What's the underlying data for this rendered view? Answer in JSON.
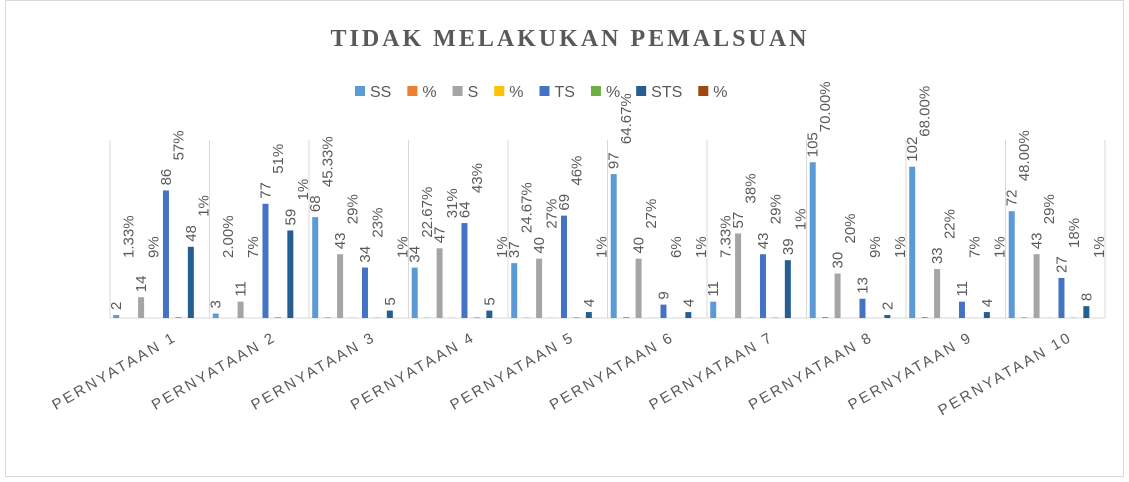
{
  "chart_data": {
    "type": "bar",
    "title": "TIDAK MELAKUKAN PEMALSUAN",
    "categories": [
      "PERNYATAAN 1",
      "PERNYATAAN 2",
      "PERNYATAAN 3",
      "PERNYATAAN 4",
      "PERNYATAAN 5",
      "PERNYATAAN 6",
      "PERNYATAAN 7",
      "PERNYATAAN 8",
      "PERNYATAAN 9",
      "PERNYATAAN 10"
    ],
    "ylim": [
      0,
      120
    ],
    "series": [
      {
        "name": "SS",
        "color": "#5b9bd5",
        "values": [
          2,
          3,
          68,
          34,
          37,
          97,
          11,
          105,
          102,
          72
        ]
      },
      {
        "name": "%",
        "color": "#ed7d31",
        "values": [
          0.0133,
          0.02,
          0.4533,
          0.2267,
          0.2467,
          0.6467,
          0.0733,
          0.7,
          0.68,
          0.48
        ],
        "value_labels": [
          "1.33%",
          "2.00%",
          "45.33%",
          "22.67%",
          "24.67%",
          "64.67%",
          "7.33%",
          "70.00%",
          "68.00%",
          "48.00%"
        ]
      },
      {
        "name": "S",
        "color": "#a5a5a5",
        "values": [
          14,
          11,
          43,
          47,
          40,
          40,
          57,
          30,
          33,
          43
        ]
      },
      {
        "name": "%",
        "color": "#ffc000",
        "values": [
          0.09,
          0.07,
          0.29,
          0.31,
          0.27,
          0.27,
          0.38,
          0.2,
          0.22,
          0.29
        ],
        "value_labels": [
          "9%",
          "7%",
          "29%",
          "31%",
          "27%",
          "27%",
          "38%",
          "20%",
          "22%",
          "29%"
        ]
      },
      {
        "name": "TS",
        "color": "#4472c4",
        "values": [
          86,
          77,
          34,
          64,
          69,
          9,
          43,
          13,
          11,
          27
        ]
      },
      {
        "name": "%",
        "color": "#70ad47",
        "values": [
          0.57,
          0.51,
          0.23,
          0.43,
          0.46,
          0.06,
          0.29,
          0.09,
          0.07,
          0.18
        ],
        "value_labels": [
          "57%",
          "51%",
          "23%",
          "43%",
          "46%",
          "6%",
          "29%",
          "9%",
          "7%",
          "18%"
        ]
      },
      {
        "name": "STS",
        "color": "#255e91",
        "values": [
          48,
          59,
          5,
          5,
          4,
          4,
          39,
          2,
          4,
          8
        ]
      },
      {
        "name": "%",
        "color": "#9e480e",
        "values": [
          0.01,
          0.01,
          0.01,
          0.01,
          0.01,
          0.01,
          0.01,
          0.01,
          0.01,
          0.01
        ],
        "value_labels": [
          "1%",
          "1%",
          "1%",
          "1%",
          "1%",
          "1%",
          "1%",
          "1%",
          "1%",
          "1%"
        ]
      }
    ]
  }
}
